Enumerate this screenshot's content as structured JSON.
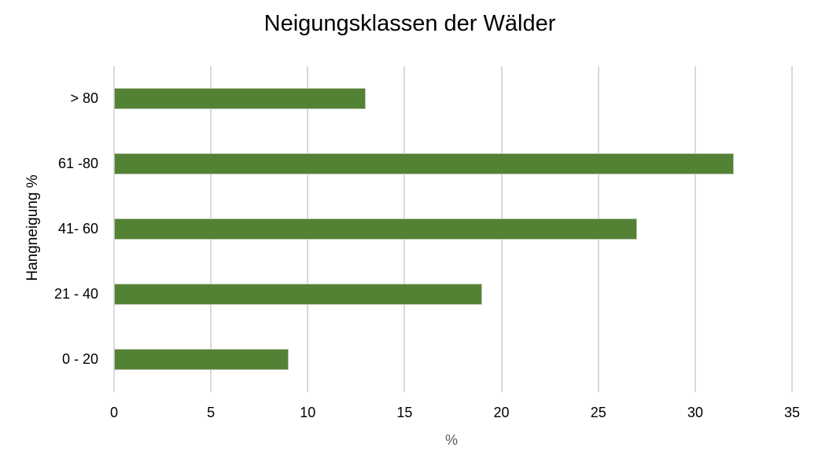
{
  "chart_data": {
    "type": "bar",
    "orientation": "horizontal",
    "title": "Neigungsklassen der Wälder",
    "xlabel": "%",
    "ylabel": "Hangneigung %",
    "categories": [
      "0 - 20",
      "21 - 40",
      "41- 60",
      "61 -80",
      "> 80"
    ],
    "values": [
      9,
      19,
      27,
      32,
      13
    ],
    "xlim": [
      0,
      35
    ],
    "xticks": [
      0,
      5,
      10,
      15,
      20,
      25,
      30,
      35
    ],
    "grid": "vertical",
    "legend": "none",
    "bar_color": "#548235"
  },
  "title": "Neigungsklassen der Wälder",
  "xaxis": {
    "label": "%",
    "ticks": [
      "0",
      "5",
      "10",
      "15",
      "20",
      "25",
      "30",
      "35"
    ]
  },
  "yaxis": {
    "label": "Hangneigung %",
    "categories_top_to_bottom": [
      "> 80",
      "61 -80",
      "41- 60",
      "21 - 40",
      "0 - 20"
    ]
  }
}
